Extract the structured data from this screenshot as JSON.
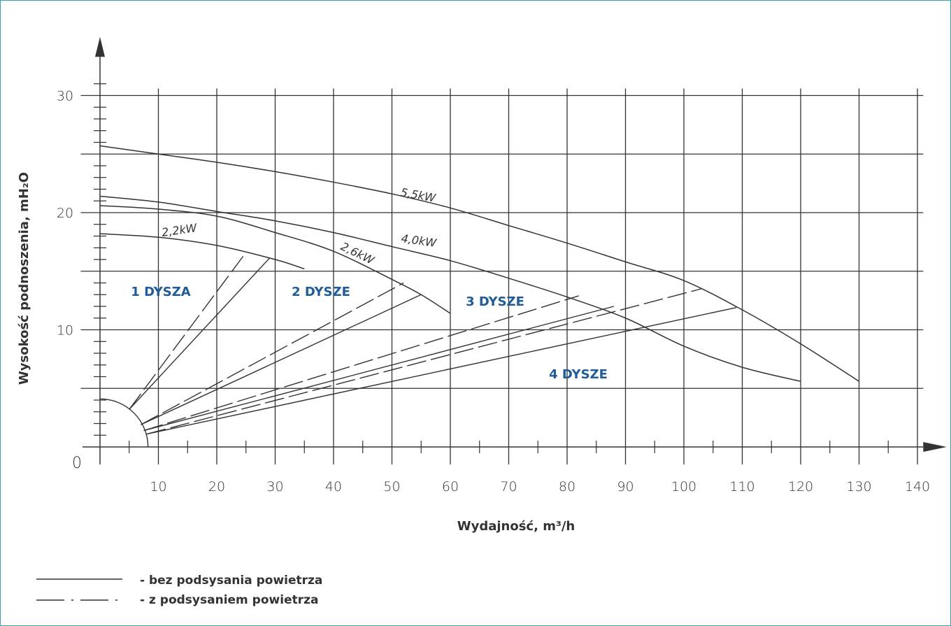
{
  "chart_data": {
    "type": "line",
    "xlabel": "Wydajność, m³/h",
    "ylabel": "Wysokość podnoszenia, mH₂O",
    "xlim": [
      0,
      145
    ],
    "ylim": [
      0,
      32
    ],
    "x_ticks": [
      10,
      20,
      30,
      40,
      50,
      60,
      70,
      80,
      90,
      100,
      110,
      120,
      130,
      140
    ],
    "y_ticks": [
      10,
      20,
      30
    ],
    "origin_label": "0",
    "grid": true,
    "pump_curves": [
      {
        "name": "2,2kW",
        "points": [
          [
            0,
            18.2
          ],
          [
            10,
            17.9
          ],
          [
            20,
            17.2
          ],
          [
            30,
            16.0
          ],
          [
            35,
            15.2
          ]
        ]
      },
      {
        "name": "2,6kW",
        "points": [
          [
            0,
            20.6
          ],
          [
            10,
            20.3
          ],
          [
            20,
            19.7
          ],
          [
            30,
            18.3
          ],
          [
            40,
            16.7
          ],
          [
            50,
            14.3
          ],
          [
            55,
            13.0
          ],
          [
            60,
            11.4
          ]
        ]
      },
      {
        "name": "4,0kW",
        "points": [
          [
            0,
            21.4
          ],
          [
            10,
            20.9
          ],
          [
            20,
            20.1
          ],
          [
            30,
            19.3
          ],
          [
            40,
            18.3
          ],
          [
            50,
            17.1
          ],
          [
            60,
            15.9
          ],
          [
            70,
            14.4
          ],
          [
            80,
            12.8
          ],
          [
            90,
            11.0
          ],
          [
            100,
            8.6
          ],
          [
            110,
            6.8
          ],
          [
            120,
            5.6
          ]
        ]
      },
      {
        "name": "5,5kW",
        "points": [
          [
            0,
            25.7
          ],
          [
            10,
            25.0
          ],
          [
            20,
            24.3
          ],
          [
            30,
            23.5
          ],
          [
            40,
            22.6
          ],
          [
            50,
            21.6
          ],
          [
            60,
            20.4
          ],
          [
            70,
            18.9
          ],
          [
            80,
            17.4
          ],
          [
            90,
            15.8
          ],
          [
            100,
            14.2
          ],
          [
            110,
            11.7
          ],
          [
            120,
            8.8
          ],
          [
            130,
            5.6
          ]
        ]
      }
    ],
    "nozzle_lines": [
      {
        "style": "solid",
        "from": [
          5,
          3.2
        ],
        "to": [
          29,
          16.1
        ]
      },
      {
        "style": "dashed",
        "from": [
          5,
          3.2
        ],
        "to": [
          25,
          16.6
        ]
      },
      {
        "style": "solid",
        "from": [
          7,
          1.9
        ],
        "to": [
          55,
          13.0
        ]
      },
      {
        "style": "dashed",
        "from": [
          7,
          1.9
        ],
        "to": [
          52,
          14.0
        ]
      },
      {
        "style": "solid",
        "from": [
          7.5,
          1.4
        ],
        "to": [
          88,
          12.0
        ]
      },
      {
        "style": "dashed",
        "from": [
          7.5,
          1.4
        ],
        "to": [
          82,
          12.9
        ]
      },
      {
        "style": "solid",
        "from": [
          8,
          1.1
        ],
        "to": [
          109,
          11.9
        ]
      },
      {
        "style": "dashed",
        "from": [
          8,
          1.1
        ],
        "to": [
          103,
          13.5
        ]
      }
    ],
    "curve_labels": [
      "5,5kW",
      "4,0kW",
      "2,6kW",
      "2,2kW"
    ],
    "regions": [
      "1 DYSZA",
      "2 DYSZE",
      "3 DYSZE",
      "4 DYSZE"
    ],
    "legend": [
      {
        "style": "solid",
        "label": "- bez podsysania powietrza"
      },
      {
        "style": "dashed",
        "label": "- z podsysaniem powietrza"
      }
    ],
    "colors": {
      "lines": "#333333",
      "regions": "#1f5c99",
      "grid": "#333333",
      "frame": "#3aa3a0"
    }
  }
}
